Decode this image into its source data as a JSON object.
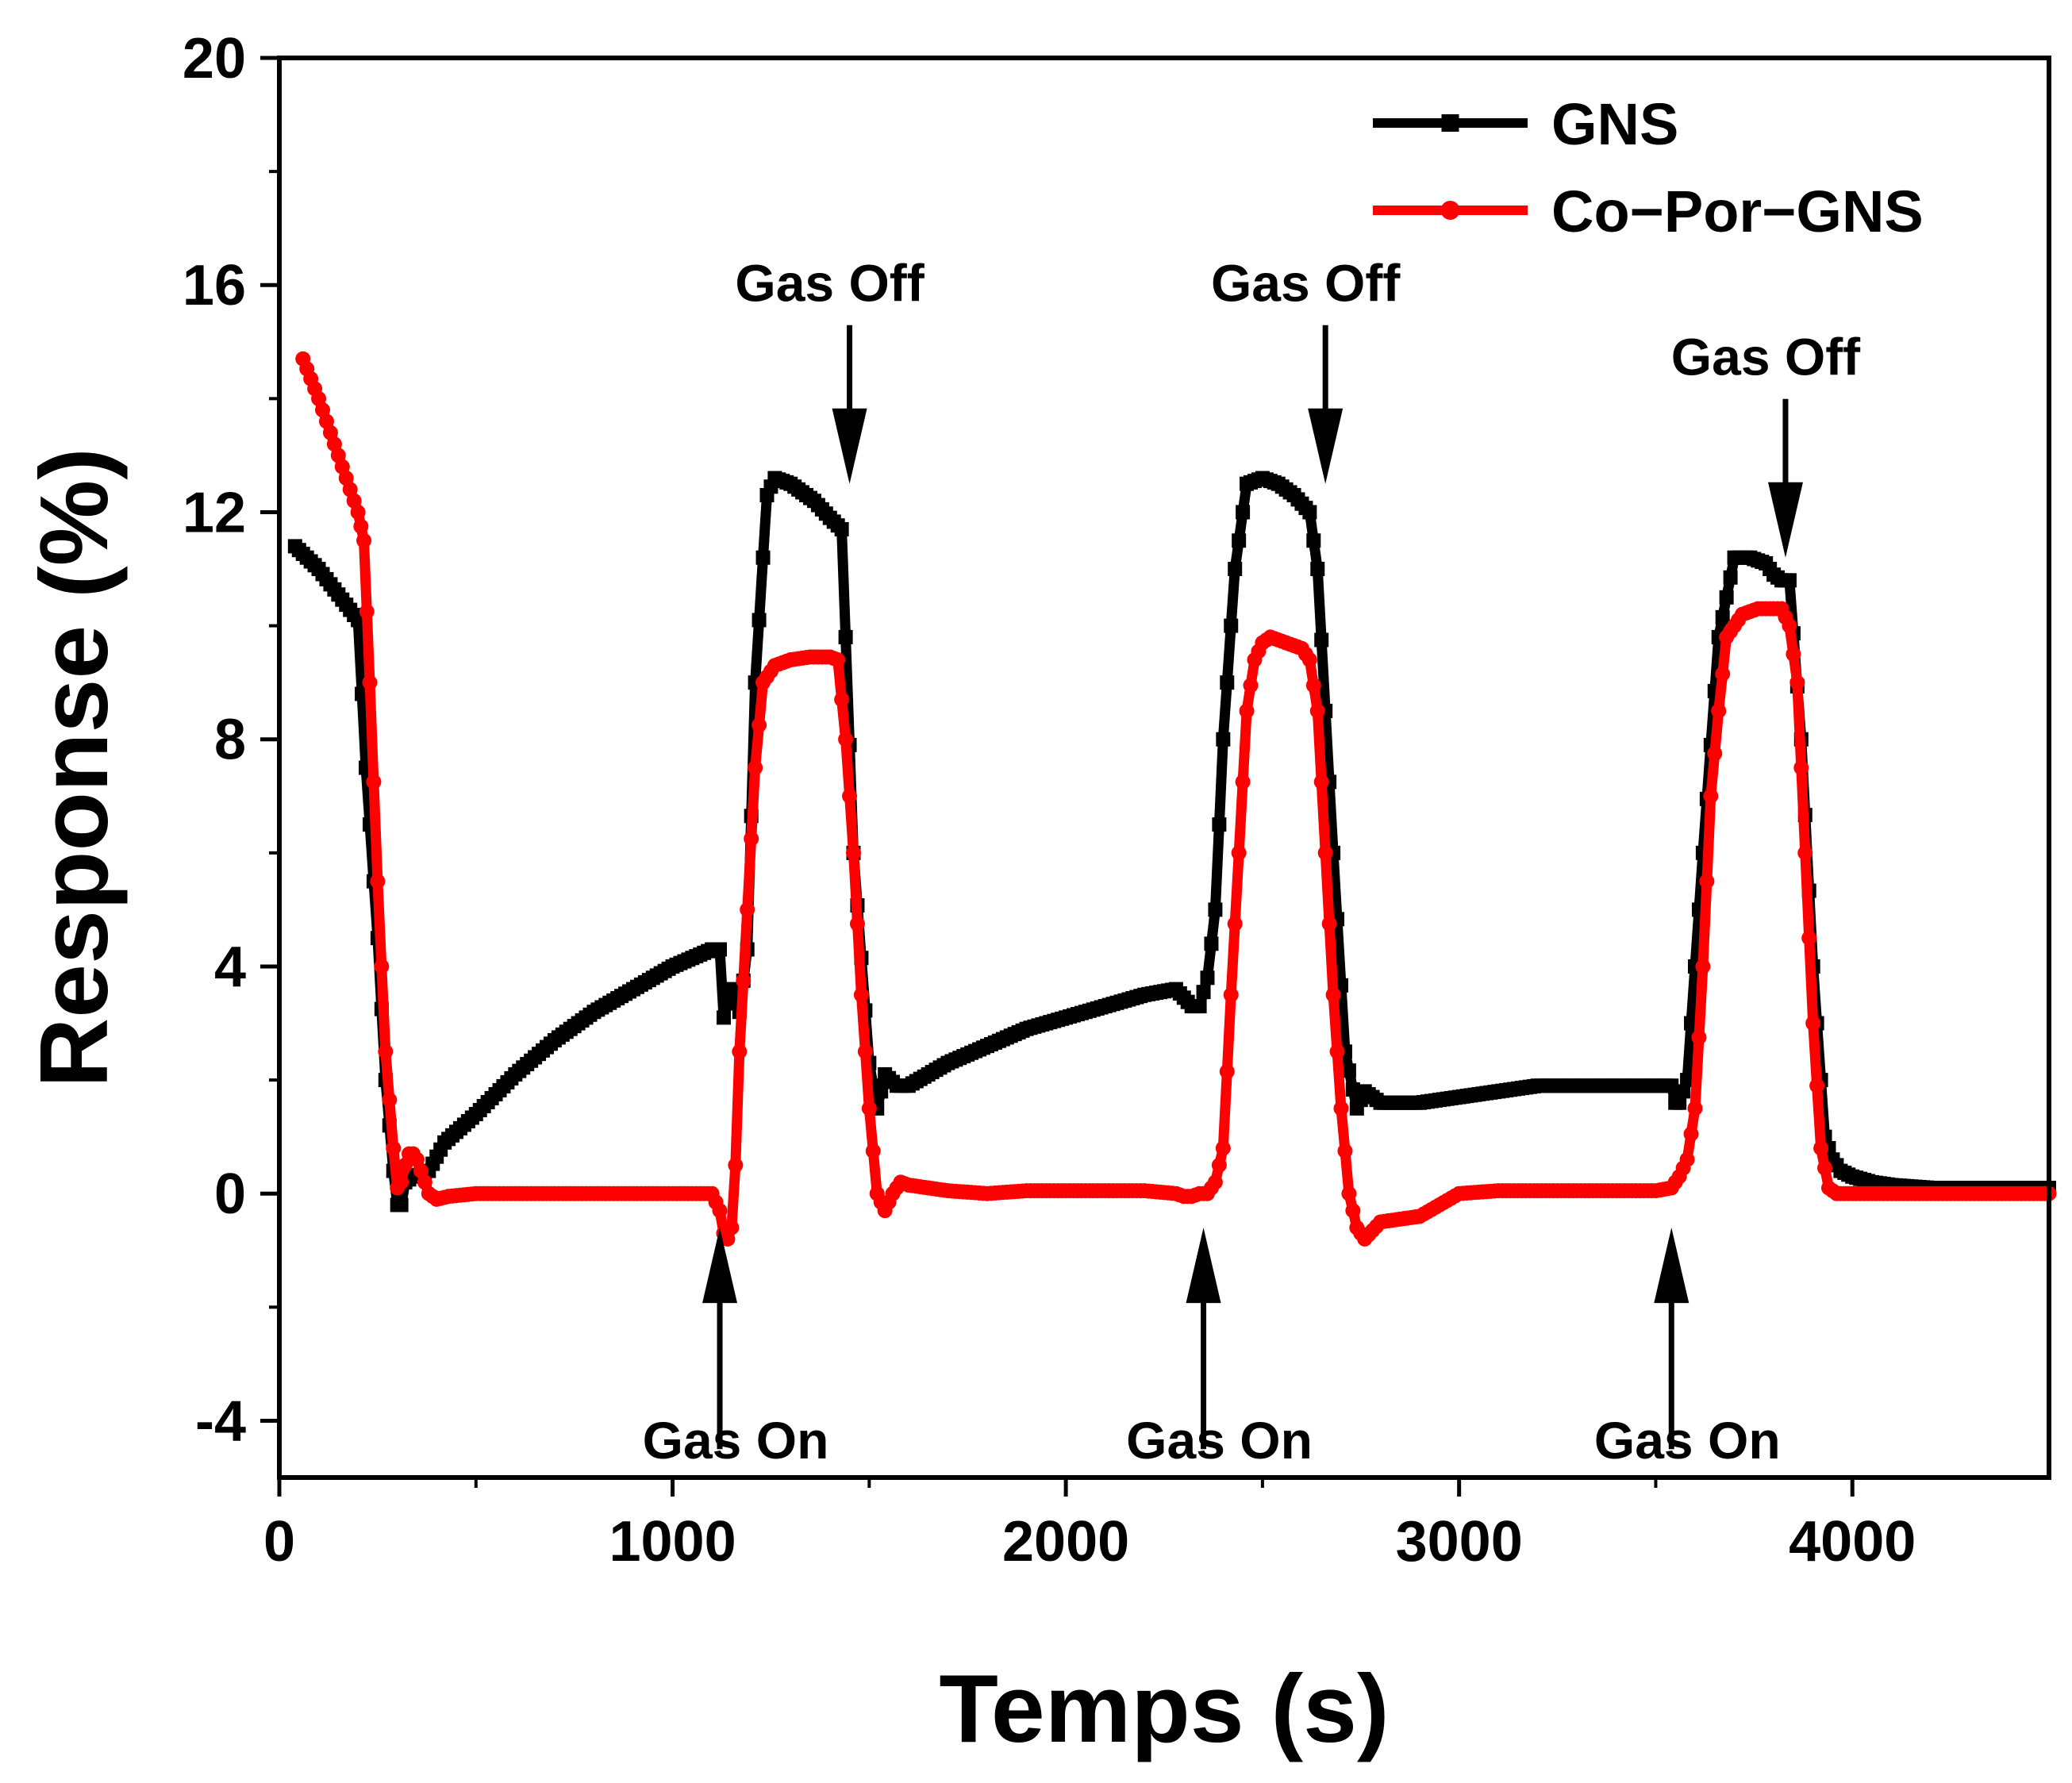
{
  "chart_data": {
    "type": "line",
    "title": "",
    "xlabel": "Temps (s)",
    "ylabel": "Response (%)",
    "xlim": [
      0,
      4500
    ],
    "ylim": [
      -5,
      20
    ],
    "xticks": [
      0,
      1000,
      2000,
      3000,
      4000
    ],
    "yticks": [
      -4,
      0,
      4,
      8,
      12,
      16,
      20
    ],
    "xtick_labels": [
      "0",
      "1000",
      "2000",
      "3000",
      "4000"
    ],
    "ytick_labels": [
      "-4",
      "0",
      "4",
      "8",
      "12",
      "16",
      "20"
    ],
    "grid": false,
    "legend_position": "top-right",
    "series": [
      {
        "name": "GNS",
        "color": "#000000",
        "marker": "square",
        "x": [
          40,
          100,
          200,
          220,
          250,
          270,
          290,
          300,
          310,
          320,
          340,
          380,
          420,
          500,
          600,
          700,
          800,
          900,
          1000,
          1100,
          1120,
          1130,
          1150,
          1170,
          1190,
          1210,
          1240,
          1260,
          1300,
          1360,
          1400,
          1430,
          1460,
          1500,
          1520,
          1540,
          1570,
          1600,
          1700,
          1800,
          1900,
          2000,
          2100,
          2200,
          2280,
          2320,
          2340,
          2360,
          2380,
          2400,
          2430,
          2460,
          2500,
          2540,
          2580,
          2620,
          2640,
          2680,
          2710,
          2740,
          2760,
          2800,
          2900,
          3000,
          3100,
          3200,
          3300,
          3400,
          3500,
          3540,
          3550,
          3560,
          3580,
          3600,
          3620,
          3660,
          3700,
          3740,
          3780,
          3800,
          3820,
          3840,
          3870,
          3900,
          3930,
          3950,
          3970,
          4000,
          4050,
          4100,
          4200,
          4300,
          4400,
          4500
        ],
        "y": [
          11.4,
          11.0,
          10.1,
          7.5,
          4.5,
          2.0,
          0.4,
          -0.2,
          -0.2,
          0.2,
          0.3,
          0.4,
          0.9,
          1.4,
          2.1,
          2.7,
          3.2,
          3.6,
          4.0,
          4.3,
          4.3,
          3.1,
          3.6,
          3.2,
          4.3,
          9.0,
          12.3,
          12.6,
          12.5,
          12.2,
          11.9,
          11.7,
          6.0,
          2.3,
          1.5,
          2.1,
          1.9,
          1.9,
          2.3,
          2.6,
          2.9,
          3.1,
          3.3,
          3.5,
          3.6,
          3.3,
          3.3,
          3.8,
          5.0,
          8.0,
          11.0,
          12.5,
          12.6,
          12.5,
          12.3,
          12.0,
          11.0,
          6.0,
          2.5,
          1.5,
          1.8,
          1.6,
          1.6,
          1.7,
          1.8,
          1.9,
          1.9,
          1.9,
          1.9,
          1.9,
          1.6,
          1.6,
          2.0,
          4.0,
          6.0,
          9.8,
          11.2,
          11.2,
          11.1,
          10.9,
          10.8,
          10.8,
          8.0,
          4.0,
          1.0,
          0.6,
          0.4,
          0.3,
          0.2,
          0.15,
          0.1,
          0.1,
          0.1,
          0.1
        ]
      },
      {
        "name": "Co−Por−GNS",
        "color": "#ff0000",
        "marker": "circle",
        "x": [
          60,
          100,
          150,
          200,
          215,
          230,
          250,
          270,
          290,
          300,
          310,
          320,
          330,
          340,
          350,
          360,
          380,
          400,
          430,
          500,
          600,
          700,
          800,
          900,
          1000,
          1050,
          1100,
          1120,
          1130,
          1140,
          1150,
          1160,
          1170,
          1190,
          1210,
          1230,
          1260,
          1300,
          1350,
          1400,
          1420,
          1440,
          1460,
          1480,
          1500,
          1520,
          1540,
          1560,
          1580,
          1600,
          1700,
          1800,
          1900,
          2000,
          2100,
          2200,
          2280,
          2300,
          2320,
          2340,
          2360,
          2380,
          2400,
          2420,
          2440,
          2460,
          2480,
          2500,
          2520,
          2560,
          2600,
          2620,
          2640,
          2660,
          2680,
          2700,
          2720,
          2740,
          2760,
          2800,
          2900,
          3000,
          3100,
          3200,
          3300,
          3400,
          3500,
          3540,
          3560,
          3580,
          3600,
          3620,
          3640,
          3660,
          3680,
          3720,
          3760,
          3800,
          3820,
          3840,
          3860,
          3880,
          3900,
          3920,
          3940,
          3960,
          4000,
          4100,
          4200,
          4300,
          4400,
          4500
        ],
        "y": [
          14.7,
          14.0,
          13.0,
          12.0,
          11.5,
          9.0,
          5.5,
          2.5,
          0.8,
          0.1,
          0.2,
          0.5,
          0.7,
          0.7,
          0.6,
          0.4,
          0.0,
          -0.1,
          -0.05,
          0.0,
          0.0,
          0.0,
          0.0,
          0.0,
          0.0,
          0.0,
          0.0,
          -0.3,
          -0.7,
          -0.8,
          -0.6,
          0.5,
          2.5,
          5.0,
          7.5,
          9.0,
          9.3,
          9.4,
          9.45,
          9.45,
          9.4,
          8.0,
          6.0,
          3.5,
          1.5,
          0.0,
          -0.3,
          0.0,
          0.2,
          0.15,
          0.05,
          0.0,
          0.05,
          0.05,
          0.05,
          0.05,
          0.0,
          -0.05,
          -0.05,
          0.0,
          0.0,
          0.2,
          0.8,
          3.5,
          6.0,
          8.5,
          9.4,
          9.7,
          9.8,
          9.7,
          9.6,
          9.4,
          8.5,
          6.0,
          3.5,
          1.5,
          0.0,
          -0.6,
          -0.8,
          -0.5,
          -0.4,
          0.0,
          0.05,
          0.05,
          0.05,
          0.05,
          0.05,
          0.1,
          0.3,
          0.6,
          1.5,
          4.0,
          7.0,
          8.5,
          9.8,
          10.2,
          10.3,
          10.3,
          10.3,
          10.0,
          9.0,
          6.0,
          3.0,
          0.8,
          0.1,
          0.0,
          0.0,
          0.0,
          0.0,
          0.0,
          0.0,
          0.0
        ]
      }
    ],
    "annotations": [
      {
        "text": "Gas On",
        "x": 1120,
        "arrow": "up"
      },
      {
        "text": "Gas Off",
        "x": 1450,
        "arrow": "down"
      },
      {
        "text": "Gas On",
        "x": 2350,
        "arrow": "up"
      },
      {
        "text": "Gas Off",
        "x": 2660,
        "arrow": "down"
      },
      {
        "text": "Gas On",
        "x": 3540,
        "arrow": "up"
      },
      {
        "text": "Gas Off",
        "x": 3830,
        "arrow": "down"
      }
    ]
  }
}
